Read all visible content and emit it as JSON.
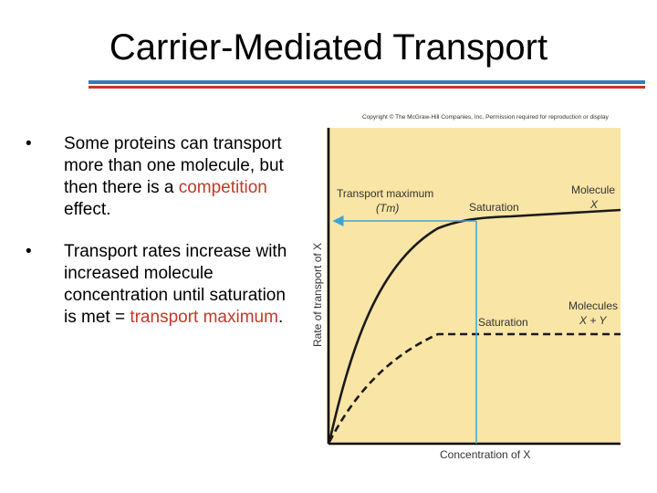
{
  "slide": {
    "title": "Carrier-Mediated Transport",
    "bullets": [
      {
        "segments": [
          {
            "text": "Some proteins can transport more than one molecule, but then there is a ",
            "highlight": false
          },
          {
            "text": "competition",
            "highlight": true
          },
          {
            "text": " effect.",
            "highlight": false
          }
        ]
      },
      {
        "segments": [
          {
            "text": "Transport rates increase with increased molecule concentration until saturation is met = ",
            "highlight": false
          },
          {
            "text": "transport maximum",
            "highlight": true
          },
          {
            "text": ".",
            "highlight": false
          }
        ]
      }
    ]
  },
  "figure": {
    "copyright": "Copyright © The McGraw-Hill Companies, Inc. Permission required for reproduction or display",
    "tm_label_line1": "Transport maximum",
    "tm_label_line2": "(Tm)",
    "saturation_upper": "Saturation",
    "saturation_lower": "Saturation",
    "molecule_x_line1": "Molecule",
    "molecule_x_line2": "X",
    "molecules_xy_line1": "Molecules",
    "molecules_xy_line2": "X + Y",
    "ylabel": "Rate of transport of X",
    "xlabel": "Concentration of X"
  },
  "colors": {
    "panel": "#f9e5a5",
    "arrow": "#3aa6d6",
    "highlight_text": "#c0392b",
    "rule_blue": "#3b77bb",
    "rule_red": "#c0392b"
  }
}
